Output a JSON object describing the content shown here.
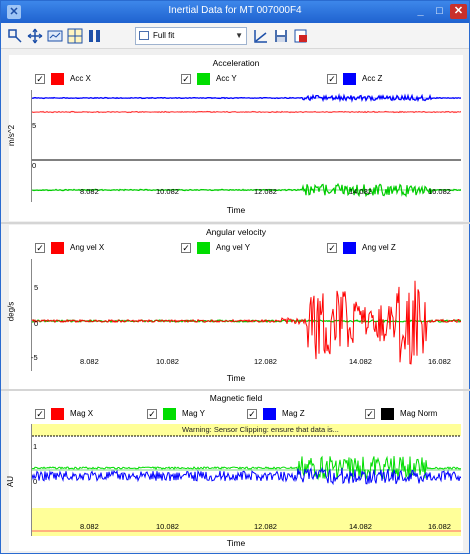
{
  "window": {
    "title": "Inertial Data for MT 007000F4",
    "minimize": "_",
    "maximize": "□",
    "close": "✕"
  },
  "toolbar": {
    "icons": [
      "pan-zoom-icon",
      "move-icon",
      "fit-icon",
      "grid-icon",
      "columns-icon",
      "line-tool-icon",
      "save-icon",
      "export-icon"
    ],
    "fit_mode": "Full fit"
  },
  "colors": {
    "red": "#ff0000",
    "green": "#00dd00",
    "blue": "#0000ff",
    "black": "#000000",
    "warning_band": "#ffff99"
  },
  "acceleration": {
    "title": "Acceleration",
    "legend": [
      {
        "label": "Acc X",
        "color": "#ff0000",
        "checked": true
      },
      {
        "label": "Acc Y",
        "color": "#00dd00",
        "checked": true
      },
      {
        "label": "Acc Z",
        "color": "#0000ff",
        "checked": true
      }
    ],
    "ylabel": "m/s^2",
    "yticks": [
      "5",
      "0"
    ],
    "xticks": [
      "8.082",
      "10.082",
      "12.082",
      "14.082",
      "16.082"
    ],
    "xlabel": "Time"
  },
  "angular": {
    "title": "Angular velocity",
    "legend": [
      {
        "label": "Ang vel X",
        "color": "#ff0000",
        "checked": true
      },
      {
        "label": "Ang vel Y",
        "color": "#00dd00",
        "checked": true
      },
      {
        "label": "Ang vel Z",
        "color": "#0000ff",
        "checked": true
      }
    ],
    "ylabel": "deg/s",
    "yticks": [
      "5",
      "0",
      "-5"
    ],
    "xticks": [
      "8.082",
      "10.082",
      "12.082",
      "14.082",
      "16.082"
    ],
    "xlabel": "Time"
  },
  "magnetic": {
    "title": "Magnetic field",
    "legend": [
      {
        "label": "Mag X",
        "color": "#ff0000",
        "checked": true
      },
      {
        "label": "Mag Y",
        "color": "#00dd00",
        "checked": true
      },
      {
        "label": "Mag Z",
        "color": "#0000ff",
        "checked": true
      },
      {
        "label": "Mag Norm",
        "color": "#000000",
        "checked": true
      }
    ],
    "warning": "Warning: Sensor Clipping: ensure that data is...",
    "ylabel": "AU",
    "yticks": [
      "1",
      "0"
    ],
    "xticks": [
      "8.082",
      "10.082",
      "12.082",
      "14.082",
      "16.082"
    ],
    "xlabel": "Time"
  }
}
